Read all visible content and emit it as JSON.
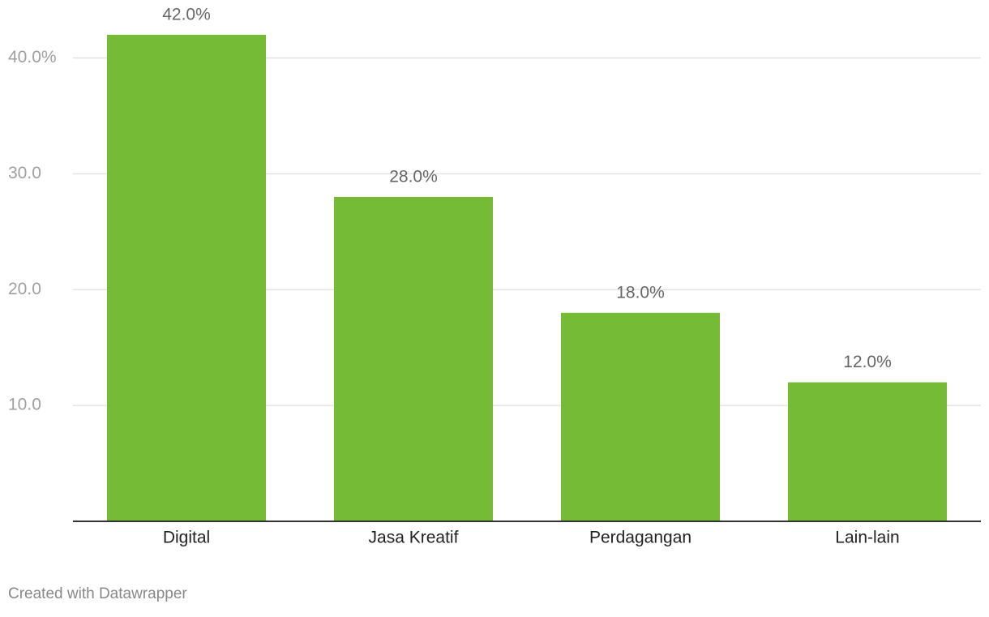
{
  "chart_data": {
    "type": "bar",
    "categories": [
      "Digital",
      "Jasa Kreatif",
      "Perdagangan",
      "Lain-lain"
    ],
    "values": [
      42.0,
      28.0,
      18.0,
      12.0
    ],
    "value_labels": [
      "42.0%",
      "28.0%",
      "18.0%",
      "12.0%"
    ],
    "color": "#76bb36",
    "ylim": [
      0,
      45
    ],
    "yticks": [
      {
        "value": 10,
        "label": "10.0"
      },
      {
        "value": 20,
        "label": "20.0"
      },
      {
        "value": 30,
        "label": "30.0"
      },
      {
        "value": 40,
        "label": "40.0%"
      }
    ],
    "grid": true,
    "footer": "Created with Datawrapper"
  }
}
